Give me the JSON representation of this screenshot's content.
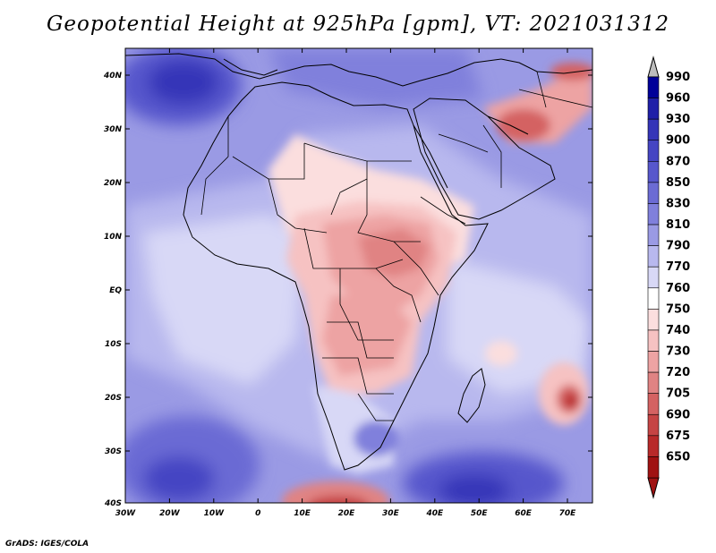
{
  "title": "Geopotential Height at 925hPa [gpm], VT: 2021031312",
  "credit": "GrADS: IGES/COLA",
  "map": {
    "lat_labels": [
      "40N",
      "30N",
      "20N",
      "10N",
      "EQ",
      "10S",
      "20S",
      "30S",
      "40S"
    ],
    "lon_labels": [
      "30W",
      "20W",
      "10W",
      "0",
      "10E",
      "20E",
      "30E",
      "40E",
      "50E",
      "60E",
      "70E"
    ]
  },
  "colorbar": {
    "levels": [
      "990",
      "960",
      "930",
      "900",
      "870",
      "850",
      "830",
      "810",
      "790",
      "770",
      "760",
      "750",
      "740",
      "730",
      "720",
      "705",
      "690",
      "675",
      "650"
    ],
    "colors": [
      "#000099",
      "#1f1fa8",
      "#3535b8",
      "#4545c3",
      "#5757cc",
      "#6b6bd4",
      "#8080dc",
      "#9a9ae4",
      "#b8b8ee",
      "#d8d8f6",
      "#ffffff",
      "#fbdede",
      "#f6c2c2",
      "#eda3a3",
      "#e08383",
      "#d46262",
      "#c64444",
      "#b82a2a",
      "#a01212"
    ],
    "top_arrow_color": "#bdbdbd",
    "bottom_arrow_color": "#a01212"
  }
}
